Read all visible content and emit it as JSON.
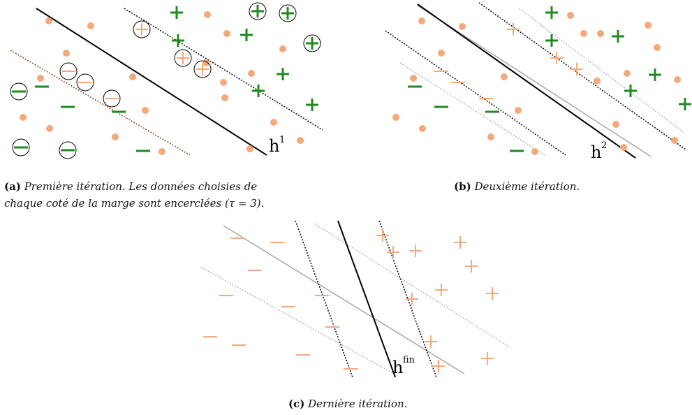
{
  "colors": {
    "unlabeled": "#f4a97c",
    "positive": "#1f8a1f",
    "negative": "#1f8a1f",
    "hyperplane": "#000000",
    "old_hyperplane": "#a8a8a8",
    "margin_brown": "#8a4b1e"
  },
  "panel_a": {
    "hlabel": "h",
    "hsup": "1",
    "caption_tag": "(a)",
    "caption_text": "Première itération. Les données choisies de",
    "caption_text2": "chaque coté de la marge sont encerclées (τ = 3)."
  },
  "panel_b": {
    "hlabel": "h",
    "hsup": "2",
    "caption_tag": "(b)",
    "caption_text": "Deuxième itération."
  },
  "panel_c": {
    "hlabel": "h",
    "hsup": "fin",
    "caption_tag": "(c)",
    "caption_text": "Dernière itération."
  },
  "symbols": {
    "plus": "+",
    "minus": "−"
  }
}
